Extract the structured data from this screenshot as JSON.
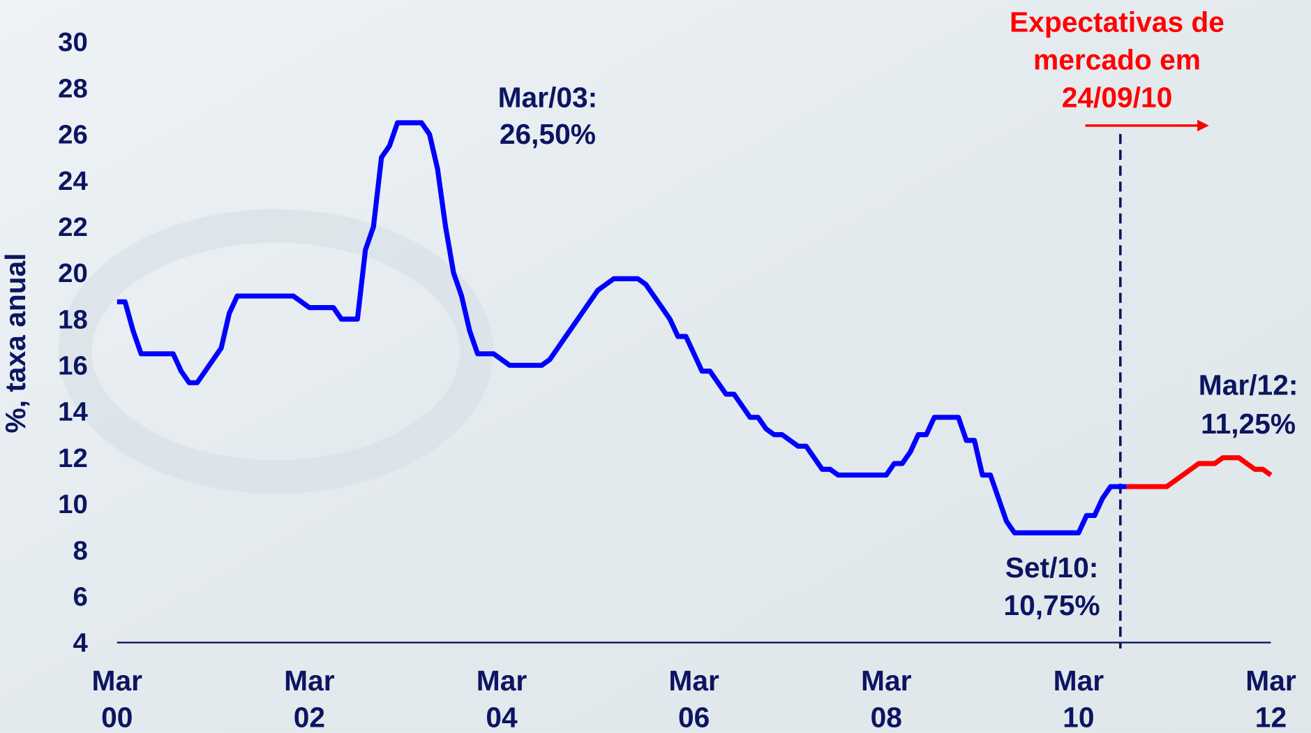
{
  "chart_data": {
    "type": "line",
    "y_label": "%, taxa anual",
    "xlim": [
      "2000-03",
      "2012-03"
    ],
    "xticks": [
      {
        "value": "2000-03",
        "label": "Mar 00"
      },
      {
        "value": "2002-03",
        "label": "Mar 02"
      },
      {
        "value": "2004-03",
        "label": "Mar 04"
      },
      {
        "value": "2006-03",
        "label": "Mar 06"
      },
      {
        "value": "2008-03",
        "label": "Mar 08"
      },
      {
        "value": "2010-03",
        "label": "Mar 10"
      },
      {
        "value": "2012-03",
        "label": "Mar 12"
      }
    ],
    "ylim": [
      4,
      30
    ],
    "yticks": [
      4,
      6,
      8,
      10,
      12,
      14,
      16,
      18,
      20,
      22,
      24,
      26,
      28,
      30
    ],
    "series": [
      {
        "color": "#0000ff",
        "x": [
          "2000-03",
          "2000-04",
          "2000-05",
          "2000-06",
          "2000-07",
          "2000-08",
          "2000-09",
          "2000-10",
          "2000-11",
          "2000-12",
          "2001-01",
          "2001-02",
          "2001-03",
          "2001-04",
          "2001-05",
          "2001-06",
          "2001-07",
          "2001-08",
          "2001-09",
          "2001-10",
          "2001-11",
          "2001-12",
          "2002-01",
          "2002-02",
          "2002-03",
          "2002-04",
          "2002-05",
          "2002-06",
          "2002-07",
          "2002-08",
          "2002-09",
          "2002-10",
          "2002-11",
          "2002-12",
          "2003-01",
          "2003-02",
          "2003-03",
          "2003-04",
          "2003-05",
          "2003-06",
          "2003-07",
          "2003-08",
          "2003-09",
          "2003-10",
          "2003-11",
          "2003-12",
          "2004-01",
          "2004-02",
          "2004-03",
          "2004-04",
          "2004-05",
          "2004-06",
          "2004-07",
          "2004-08",
          "2004-09",
          "2004-10",
          "2004-11",
          "2004-12",
          "2005-01",
          "2005-02",
          "2005-03",
          "2005-04",
          "2005-05",
          "2005-06",
          "2005-07",
          "2005-08",
          "2005-09",
          "2005-10",
          "2005-11",
          "2005-12",
          "2006-01",
          "2006-02",
          "2006-03",
          "2006-04",
          "2006-05",
          "2006-06",
          "2006-07",
          "2006-08",
          "2006-09",
          "2006-10",
          "2006-11",
          "2006-12",
          "2007-01",
          "2007-02",
          "2007-03",
          "2007-04",
          "2007-05",
          "2007-06",
          "2007-07",
          "2007-08",
          "2007-09",
          "2007-10",
          "2007-11",
          "2007-12",
          "2008-01",
          "2008-02",
          "2008-03",
          "2008-04",
          "2008-05",
          "2008-06",
          "2008-07",
          "2008-08",
          "2008-09",
          "2008-10",
          "2008-11",
          "2008-12",
          "2009-01",
          "2009-02",
          "2009-03",
          "2009-04",
          "2009-05",
          "2009-06",
          "2009-07",
          "2009-08",
          "2009-09",
          "2009-10",
          "2009-11",
          "2009-12",
          "2010-01",
          "2010-02",
          "2010-03",
          "2010-04",
          "2010-05",
          "2010-06",
          "2010-07",
          "2010-08",
          "2010-09"
        ],
        "values": [
          18.75,
          18.75,
          17.5,
          16.5,
          16.5,
          16.5,
          16.5,
          16.5,
          15.75,
          15.25,
          15.25,
          15.75,
          16.25,
          16.75,
          18.25,
          19,
          19,
          19,
          19,
          19,
          19,
          19,
          19,
          18.75,
          18.5,
          18.5,
          18.5,
          18.5,
          18,
          18,
          18,
          21,
          22,
          25,
          25.5,
          26.5,
          26.5,
          26.5,
          26.5,
          26,
          24.5,
          22,
          20,
          19,
          17.5,
          16.5,
          16.5,
          16.5,
          16.25,
          16,
          16,
          16,
          16,
          16,
          16.25,
          16.75,
          17.25,
          17.75,
          18.25,
          18.75,
          19.25,
          19.5,
          19.75,
          19.75,
          19.75,
          19.75,
          19.5,
          19,
          18.5,
          18,
          17.25,
          17.25,
          16.5,
          15.75,
          15.75,
          15.25,
          14.75,
          14.75,
          14.25,
          13.75,
          13.75,
          13.25,
          13,
          13,
          12.75,
          12.5,
          12.5,
          12,
          11.5,
          11.5,
          11.25,
          11.25,
          11.25,
          11.25,
          11.25,
          11.25,
          11.25,
          11.75,
          11.75,
          12.25,
          13,
          13,
          13.75,
          13.75,
          13.75,
          13.75,
          12.75,
          12.75,
          11.25,
          11.25,
          10.25,
          9.25,
          8.75,
          8.75,
          8.75,
          8.75,
          8.75,
          8.75,
          8.75,
          8.75,
          8.75,
          9.5,
          9.5,
          10.25,
          10.75,
          10.75,
          10.75
        ]
      },
      {
        "color": "#ff0000",
        "x": [
          "2010-09",
          "2010-10",
          "2010-11",
          "2010-12",
          "2011-01",
          "2011-02",
          "2011-03",
          "2011-04",
          "2011-05",
          "2011-06",
          "2011-07",
          "2011-08",
          "2011-09",
          "2011-10",
          "2011-11",
          "2011-12",
          "2012-01",
          "2012-02",
          "2012-03"
        ],
        "values": [
          10.75,
          10.75,
          10.75,
          10.75,
          10.75,
          10.75,
          11,
          11.25,
          11.5,
          11.75,
          11.75,
          11.75,
          12,
          12,
          12,
          11.75,
          11.5,
          11.5,
          11.25
        ]
      }
    ],
    "annotations": [
      {
        "lines": [
          "Mar/03:",
          "26,50%"
        ],
        "color": "#0b1561"
      },
      {
        "lines": [
          "Set/10:",
          "10,75%"
        ],
        "color": "#0b1561"
      },
      {
        "lines": [
          "Mar/12:",
          "11,25%"
        ],
        "color": "#0b1561"
      },
      {
        "lines": [
          "Expectativas de",
          "mercado em",
          "24/09/10"
        ],
        "color": "#ff0000"
      }
    ]
  }
}
